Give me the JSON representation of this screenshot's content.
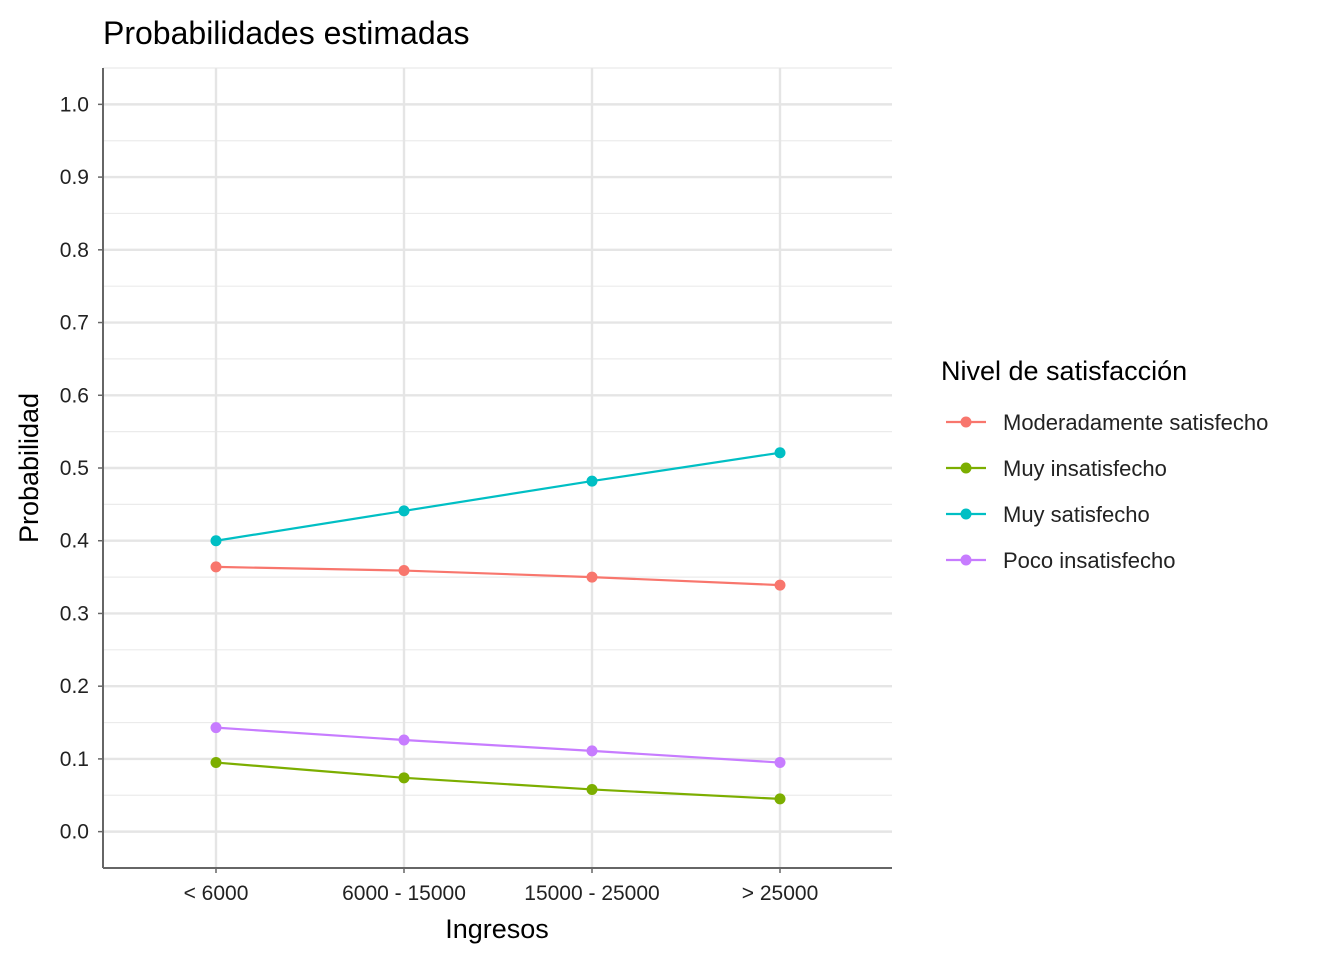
{
  "chart_data": {
    "type": "line",
    "title": "Probabilidades estimadas",
    "xlabel": "Ingresos",
    "ylabel": "Probabilidad",
    "categories": [
      "< 6000",
      "6000 - 15000",
      "15000 - 25000",
      "> 25000"
    ],
    "ylim": [
      -0.05,
      1.05
    ],
    "yticks": [
      0.0,
      0.1,
      0.2,
      0.3,
      0.4,
      0.5,
      0.6,
      0.7,
      0.8,
      0.9,
      1.0
    ],
    "ytick_labels": [
      "0.0",
      "0.1",
      "0.2",
      "0.3",
      "0.4",
      "0.5",
      "0.6",
      "0.7",
      "0.8",
      "0.9",
      "1.0"
    ],
    "grid": true,
    "legend": {
      "title": "Nivel de satisfacción",
      "placement": "right"
    },
    "series": [
      {
        "name": "Moderadamente satisfecho",
        "color": "#F8766D",
        "values": [
          0.364,
          0.359,
          0.35,
          0.339
        ]
      },
      {
        "name": "Muy insatisfecho",
        "color": "#7CAE00",
        "values": [
          0.095,
          0.074,
          0.058,
          0.045
        ]
      },
      {
        "name": "Muy satisfecho",
        "color": "#00BFC4",
        "values": [
          0.4,
          0.441,
          0.482,
          0.521
        ]
      },
      {
        "name": "Poco insatisfecho",
        "color": "#C77CFF",
        "values": [
          0.143,
          0.126,
          0.111,
          0.095
        ]
      }
    ]
  }
}
